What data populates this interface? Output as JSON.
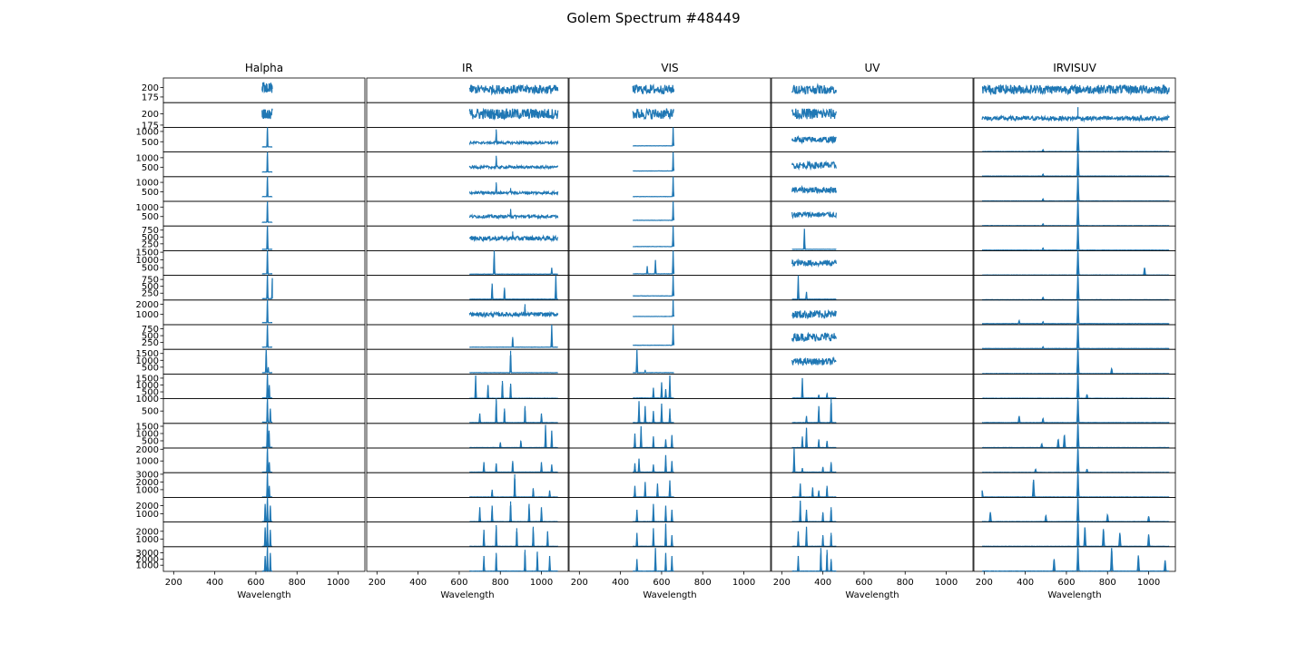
{
  "figure": {
    "title": "Golem Spectrum #48449",
    "colors": {
      "series": "#1f77b4",
      "axes": "#000000",
      "background": "#ffffff"
    }
  },
  "chart_data": {
    "type": "line",
    "layout": "grid of small-multiple spectra, 20 rows x 5 columns, shared x axis per column",
    "xlabel": "Wavelength",
    "xlim": [
      150,
      1130
    ],
    "xticks": [
      200,
      400,
      600,
      800,
      1000
    ],
    "grid": false,
    "legend": "none",
    "columns": [
      {
        "title": "Halpha",
        "x_range": [
          630,
          680
        ]
      },
      {
        "title": "IR",
        "x_range": [
          650,
          1080
        ]
      },
      {
        "title": "VIS",
        "x_range": [
          460,
          660
        ]
      },
      {
        "title": "UV",
        "x_range": [
          250,
          465
        ]
      },
      {
        "title": "IRVISUV",
        "x_range": [
          190,
          1100
        ]
      }
    ],
    "rows": [
      {
        "ylim": [
          160,
          225
        ],
        "yticks": [
          175,
          200
        ],
        "profiles": [
          "noise:200:14",
          "noise:195:12",
          "noise:195:12",
          "noise:195:12",
          "noise:195:12"
        ]
      },
      {
        "ylim": [
          170,
          225
        ],
        "yticks": [
          175,
          200
        ],
        "profiles": [
          "noise:200:12",
          "noise:200:12",
          "noise:200:12",
          "noise:200:12",
          "noise:190:5;656:215"
        ]
      },
      {
        "ylim": [
          0,
          1200
        ],
        "yticks": [
          500,
          1000
        ],
        "profiles": [
          "flat:250;656:1200",
          "noise:450:60;780:1100",
          "flat:300;656:1200",
          "noise:600:150",
          "flat:20;656:1200;486:120"
        ]
      },
      {
        "ylim": [
          0,
          1300
        ],
        "yticks": [
          500,
          1000
        ],
        "profiles": [
          "flat:250;656:1300",
          "noise:500:70;780:1100",
          "flat:300;656:1300",
          "noise:600:180",
          "flat:30;656:1300;486:140"
        ]
      },
      {
        "ylim": [
          0,
          1300
        ],
        "yticks": [
          500,
          1000
        ],
        "profiles": [
          "flat:250;656:1300",
          "noise:450:70;780:1000;850:700",
          "flat:250;656:1300",
          "noise:600:160",
          "flat:20;656:1300;486:140"
        ]
      },
      {
        "ylim": [
          0,
          1300
        ],
        "yticks": [
          500,
          1000
        ],
        "profiles": [
          "flat:200;656:1300",
          "noise:500:80;850:900",
          "flat:300;656:1300",
          "noise:600:150",
          "flat:20;656:1300;486:120"
        ]
      },
      {
        "ylim": [
          0,
          900
        ],
        "yticks": [
          250,
          500,
          750
        ],
        "profiles": [
          "flat:50;656:900",
          "noise:450:80;860:700",
          "flat:150;656:900",
          "flat:50;310:800",
          "flat:20;656:900;486:100"
        ]
      },
      {
        "ylim": [
          0,
          1600
        ],
        "yticks": [
          500,
          1000,
          1500
        ],
        "profiles": [
          "flat:100;656:1600",
          "flat:80;770:1600;1050:500",
          "flat:100;570:1000;530:600;656:1600",
          "noise:800:200",
          "flat:20;656:1600;980:500"
        ]
      },
      {
        "ylim": [
          0,
          900
        ],
        "yticks": [
          250,
          500,
          750
        ],
        "profiles": [
          "flat:50;656:900;680:800",
          "flat:30;760:600;820:450;1070:900",
          "flat:150;656:900",
          "flat:30;280:900;320:300",
          "flat:10;656:900;486:100"
        ]
      },
      {
        "ylim": [
          0,
          2400
        ],
        "yticks": [
          1000,
          2000
        ],
        "profiles": [
          "flat:200;656:2400",
          "noise:1000:200;920:2000",
          "flat:800;656:2400",
          "noise:1000:400",
          "flat:100;656:2400;370:400;486:300"
        ]
      },
      {
        "ylim": [
          0,
          900
        ],
        "yticks": [
          250,
          500,
          750
        ],
        "profiles": [
          "flat:80;656:900",
          "flat:80;860:450;1050:900",
          "flat:150;656:900",
          "noise:450:150",
          "flat:30;656:900;486:100"
        ]
      },
      {
        "ylim": [
          0,
          1800
        ],
        "yticks": [
          500,
          1000,
          1500
        ],
        "profiles": [
          "flat:100;650:1800;660:500",
          "flat:100;850:1700",
          "flat:100;480:1800;520:300",
          "noise:900:250",
          "flat:30;656:1800;820:400"
        ]
      },
      {
        "ylim": [
          0,
          1800
        ],
        "yticks": [
          500,
          1000,
          1500
        ],
        "profiles": [
          "flat:50;656:1800;665:1000",
          "flat:30;680:1700;740:1000;810:1300;850:1100",
          "flat:50;560:800;600:1200;640:1700;620:700",
          "flat:50;300:1500;380:300;420:400",
          "flat:30;656:1800;700:300"
        ]
      },
      {
        "ylim": [
          0,
          1000
        ],
        "yticks": [
          500,
          1000
        ],
        "profiles": [
          "flat:50;656:1000;670:600",
          "flat:30;700:400;780:1000;820:600;920:700;1000:400",
          "flat:30;490:900;520:700;560:500;600:800;640:600",
          "flat:30;380:700;440:1000;320:300",
          "flat:30;656:1000;370:300;486:200"
        ]
      },
      {
        "ylim": [
          0,
          1700
        ],
        "yticks": [
          500,
          1000,
          1500
        ],
        "profiles": [
          "flat:50;656:1700;664:1200",
          "flat:30;1020:1600;1050:1200;900:500;800:400",
          "flat:30;470:1000;500:1500;560:800;620:600;650:900",
          "flat:30;320:1400;300:800;380:600;420:500",
          "flat:30;656:1700;560:600;590:900;480:300"
        ]
      },
      {
        "ylim": [
          0,
          2100
        ],
        "yticks": [
          1000,
          2000
        ],
        "profiles": [
          "flat:50;656:2100;665:900",
          "flat:50;720:900;780:800;860:1000;1000:900;1050:700",
          "flat:50;470:800;490:1200;560:700;620:1500;650:1000",
          "flat:50;260:2100;300:400;400:500;440:900",
          "flat:30;656:2100;450:300;700:300"
        ]
      },
      {
        "ylim": [
          0,
          3200
        ],
        "yticks": [
          1000,
          2000,
          3000
        ],
        "profiles": [
          "flat:50;656:3200;665:1500",
          "flat:50;870:3000;760:1000;960:1200;1040:900",
          "flat:50;470:1500;520:2000;580:1800;640:2200",
          "flat:50;290:1800;350:1300;420:1500;380:900",
          "flat:50;656:3200;440:2300;190:900"
        ]
      },
      {
        "ylim": [
          0,
          3000
        ],
        "yticks": [
          1000,
          2000
        ],
        "profiles": [
          "flat:50;656:3000;645:2200;670:2000",
          "flat:50;700:1800;760:2000;850:2500;940:2200;1000:1800",
          "flat:50;480:1500;560:2200;620:2000;650:1500",
          "flat:50;290:2600;320:1500;400:1200;440:1800",
          "flat:50;656:3000;230:1200;500:800;800:900;1000:700"
        ]
      },
      {
        "ylim": [
          0,
          3200
        ],
        "yticks": [
          1000,
          2000
        ],
        "profiles": [
          "flat:50;656:3200;645:2500;670:2200",
          "flat:50;720:2200;780:2800;880:2400;960:2600;1030:2000",
          "flat:50;480:1800;560:2400;620:3000;650:1500",
          "flat:50;280:2000;320:2600;400:1500;440:1800",
          "flat:50;656:3200;690:2500;780:2300;860:1800;1000:1600"
        ]
      },
      {
        "ylim": [
          0,
          4000
        ],
        "yticks": [
          1000,
          2000,
          3000
        ],
        "profiles": [
          "flat:50;656:4000;645:2500;670:3000",
          "flat:50;720:2500;780:3000;920:3500;980:3200;1040:2500",
          "flat:50;480:2000;570:3800;620:3000;650:2500",
          "flat:50;280:2500;390:3800;420:3500;440:2000",
          "flat:50;656:4000;820:3800;950:2600;540:2000;1080:1800"
        ]
      }
    ]
  }
}
